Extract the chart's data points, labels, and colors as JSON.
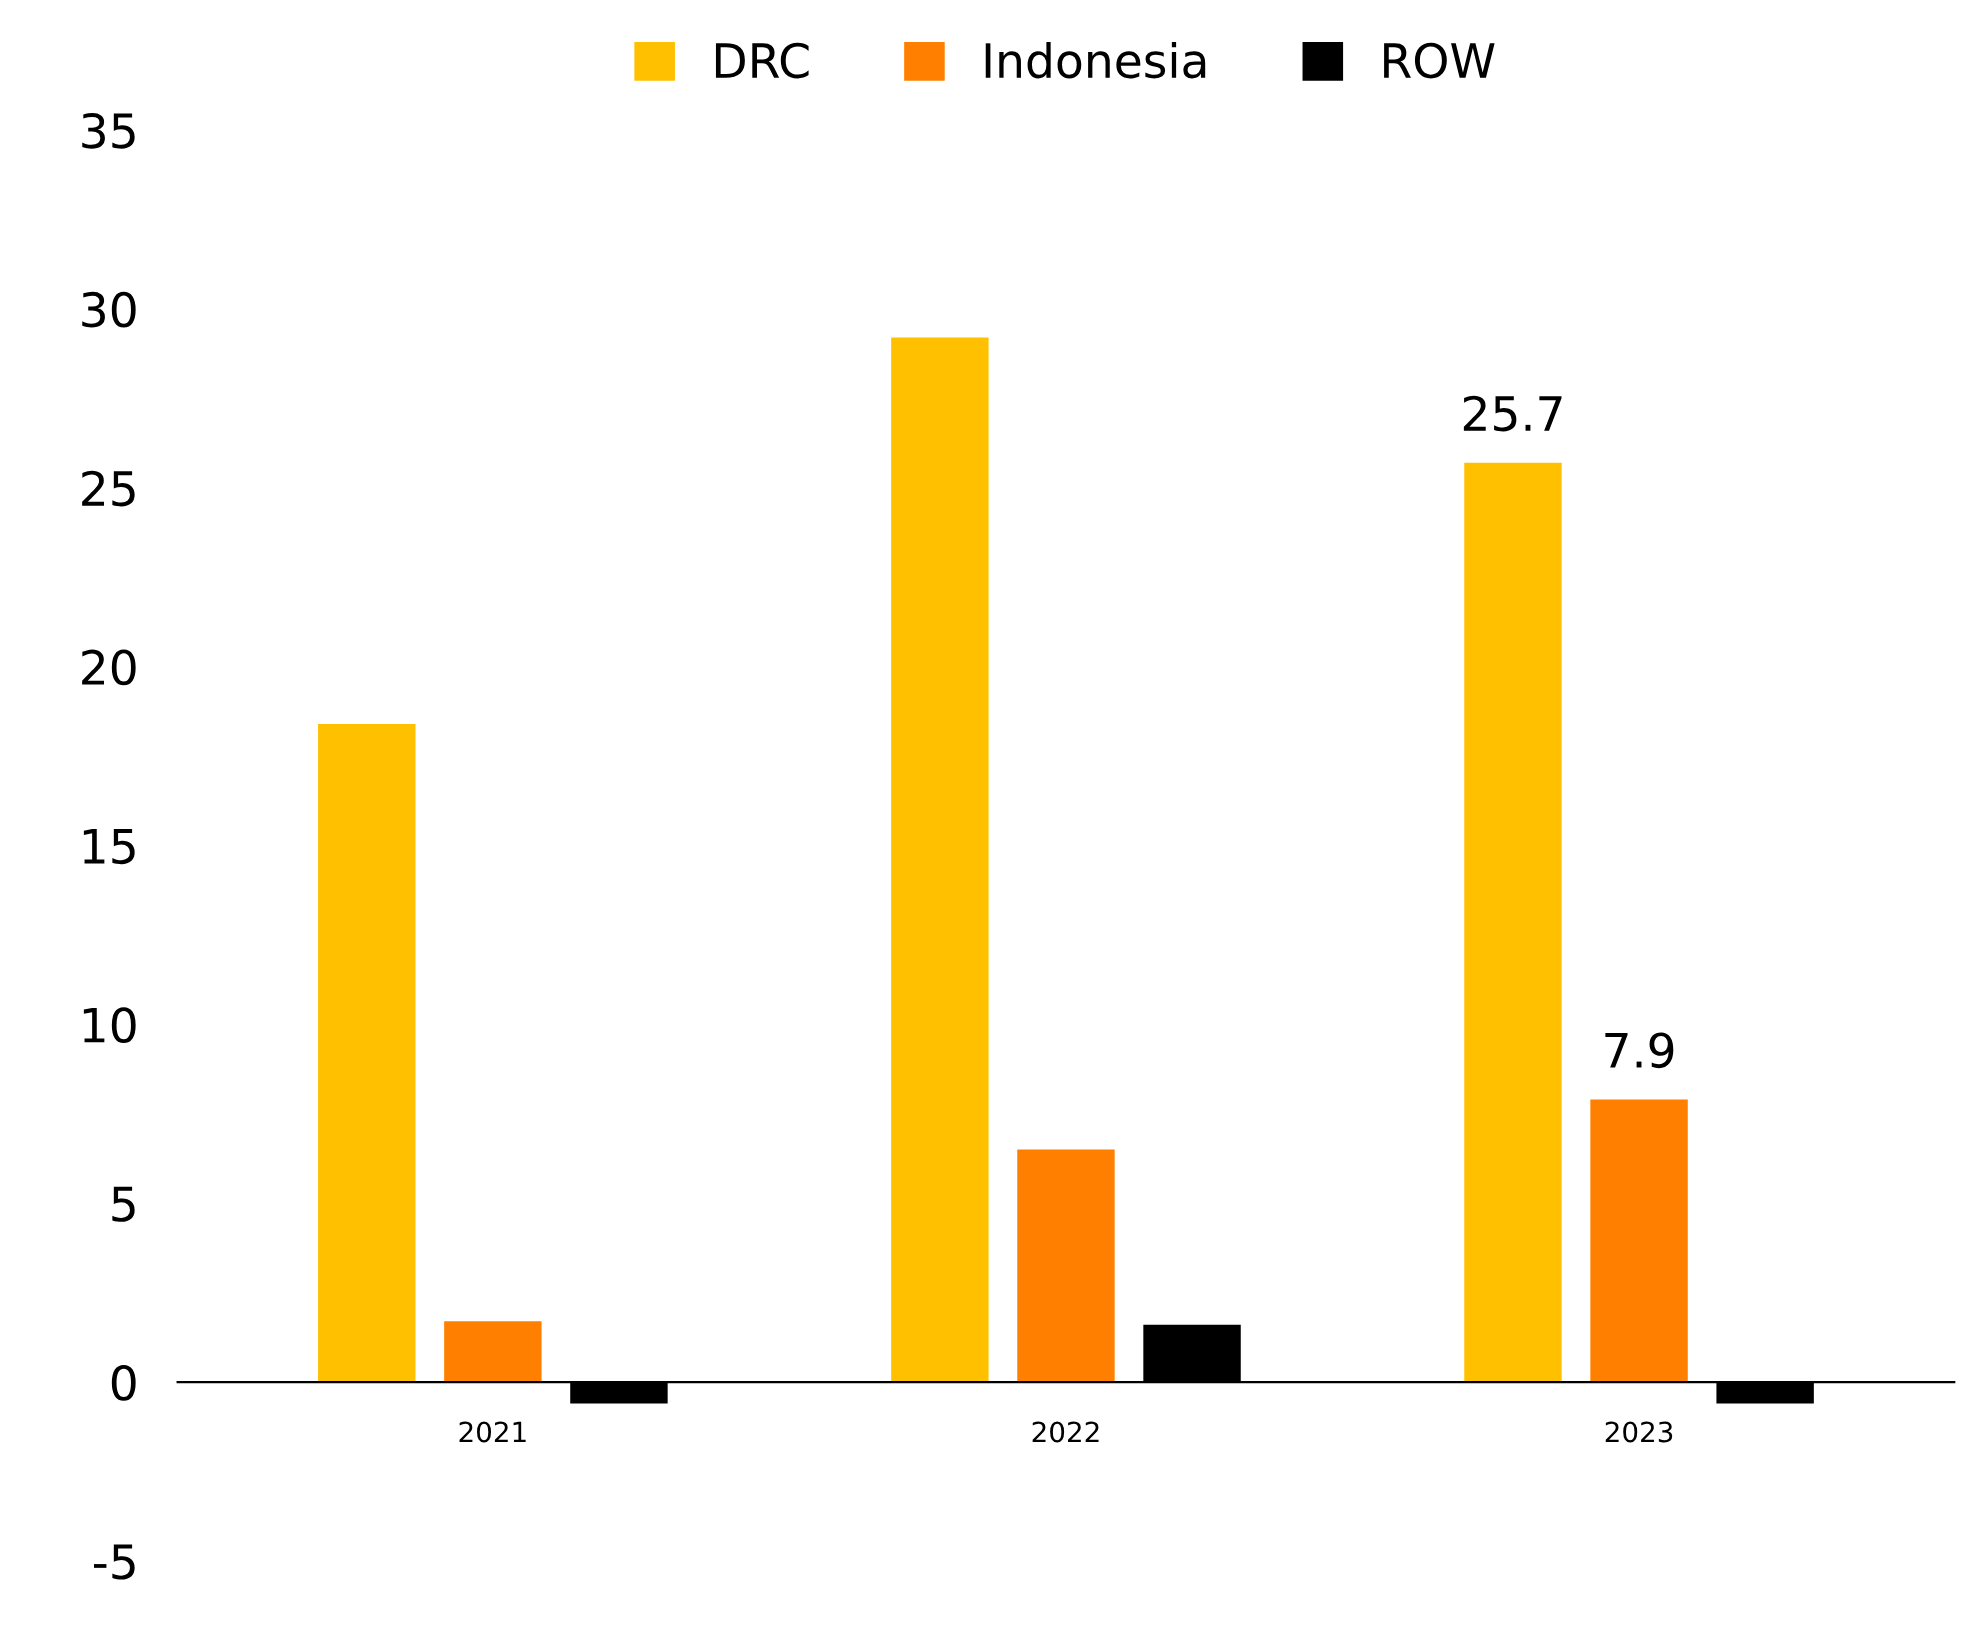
{
  "chart_data": {
    "type": "bar",
    "categories": [
      "2021",
      "2022",
      "2023"
    ],
    "series": [
      {
        "name": "DRC",
        "color": "#ffc000",
        "values": [
          18.4,
          29.2,
          25.7
        ],
        "value_labels": [
          null,
          null,
          "25.7"
        ]
      },
      {
        "name": "Indonesia",
        "color": "#ff8000",
        "values": [
          1.7,
          6.5,
          7.9
        ],
        "value_labels": [
          null,
          null,
          "7.9"
        ]
      },
      {
        "name": "ROW",
        "color": "#000000",
        "values": [
          -0.6,
          1.6,
          -0.6
        ]
      }
    ],
    "ylim": [
      -5,
      35
    ],
    "yticks": [
      -5,
      0,
      5,
      10,
      15,
      20,
      25,
      30,
      35
    ],
    "grid": false,
    "legend": "top"
  }
}
